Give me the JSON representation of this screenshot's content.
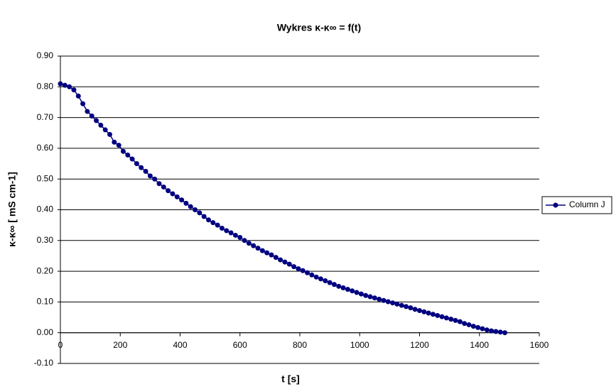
{
  "chart_data": {
    "type": "line",
    "title": "Wykres κ-κ∞ = f(t)",
    "x_label": "t [s]",
    "y_label": "κ-κ∞ [ mS cm-1]",
    "x": [
      0,
      15,
      30,
      45,
      60,
      75,
      90,
      105,
      120,
      135,
      150,
      165,
      180,
      195,
      210,
      225,
      240,
      255,
      270,
      285,
      300,
      315,
      330,
      345,
      360,
      375,
      390,
      405,
      420,
      435,
      450,
      465,
      480,
      495,
      510,
      525,
      540,
      555,
      570,
      585,
      600,
      615,
      630,
      645,
      660,
      675,
      690,
      705,
      720,
      735,
      750,
      765,
      780,
      795,
      810,
      825,
      840,
      855,
      870,
      885,
      900,
      915,
      930,
      945,
      960,
      975,
      990,
      1005,
      1020,
      1035,
      1050,
      1065,
      1080,
      1095,
      1110,
      1125,
      1140,
      1155,
      1170,
      1185,
      1200,
      1215,
      1230,
      1245,
      1260,
      1275,
      1290,
      1305,
      1320,
      1335,
      1350,
      1365,
      1380,
      1395,
      1410,
      1425,
      1440,
      1455,
      1470,
      1485
    ],
    "series": [
      {
        "name": "Column J",
        "color": "#000080",
        "values": [
          0.81,
          0.805,
          0.8,
          0.79,
          0.77,
          0.745,
          0.72,
          0.705,
          0.69,
          0.675,
          0.66,
          0.645,
          0.62,
          0.61,
          0.59,
          0.578,
          0.565,
          0.55,
          0.537,
          0.525,
          0.51,
          0.5,
          0.485,
          0.474,
          0.462,
          0.452,
          0.442,
          0.432,
          0.421,
          0.41,
          0.4,
          0.39,
          0.378,
          0.367,
          0.358,
          0.35,
          0.34,
          0.332,
          0.325,
          0.317,
          0.31,
          0.3,
          0.291,
          0.283,
          0.275,
          0.267,
          0.26,
          0.253,
          0.245,
          0.237,
          0.23,
          0.223,
          0.215,
          0.208,
          0.202,
          0.195,
          0.188,
          0.181,
          0.175,
          0.169,
          0.163,
          0.157,
          0.151,
          0.146,
          0.141,
          0.136,
          0.131,
          0.126,
          0.121,
          0.117,
          0.113,
          0.109,
          0.105,
          0.101,
          0.097,
          0.093,
          0.089,
          0.085,
          0.081,
          0.076,
          0.072,
          0.068,
          0.064,
          0.06,
          0.056,
          0.052,
          0.048,
          0.044,
          0.04,
          0.036,
          0.03,
          0.026,
          0.021,
          0.017,
          0.013,
          0.009,
          0.006,
          0.004,
          0.002,
          0.0
        ]
      }
    ],
    "xlim": [
      0,
      1600
    ],
    "xticks": [
      0,
      200,
      400,
      600,
      800,
      1000,
      1200,
      1400,
      1600
    ],
    "ylim": [
      -0.1,
      0.9
    ],
    "yticks": [
      {
        "value": -0.1,
        "label": "-0.10"
      },
      {
        "value": 0,
        "label": "0.00"
      },
      {
        "value": 0.1,
        "label": "0.10"
      },
      {
        "value": 0.2,
        "label": "0.20"
      },
      {
        "value": 0.3,
        "label": "0.30"
      },
      {
        "value": 0.4,
        "label": "0.40"
      },
      {
        "value": 0.5,
        "label": "0.50"
      },
      {
        "value": 0.6,
        "label": "0.60"
      },
      {
        "value": 0.7,
        "label": "0.70"
      },
      {
        "value": 0.8,
        "label": "0.80"
      },
      {
        "value": 0.9,
        "label": "0.90"
      }
    ],
    "grid": true,
    "legend": "right"
  }
}
